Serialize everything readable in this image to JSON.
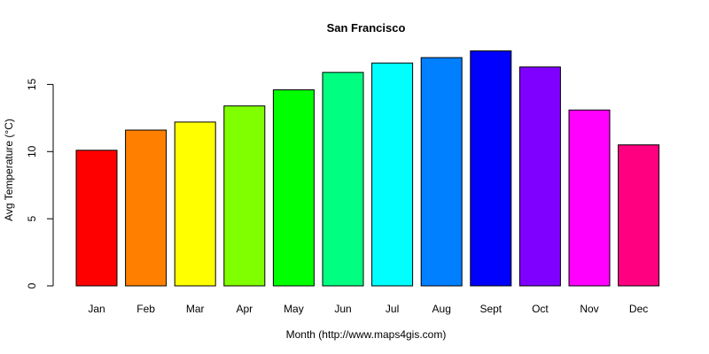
{
  "chart_data": {
    "type": "bar",
    "title": "San Francisco",
    "xlabel": "Month (http://www.maps4gis.com)",
    "ylabel": "Avg Temperature (°C)",
    "categories": [
      "Jan",
      "Feb",
      "Mar",
      "Apr",
      "May",
      "Jun",
      "Jul",
      "Aug",
      "Sept",
      "Oct",
      "Nov",
      "Dec"
    ],
    "values": [
      10.1,
      11.6,
      12.2,
      13.4,
      14.6,
      15.9,
      16.6,
      17.0,
      17.5,
      16.3,
      13.1,
      10.5
    ],
    "colors": [
      "#FF0000",
      "#FF8000",
      "#FFFF00",
      "#80FF00",
      "#00FF00",
      "#00FF80",
      "#00FFFF",
      "#0080FF",
      "#0000FF",
      "#8000FF",
      "#FF00FF",
      "#FF0080"
    ],
    "ylim": [
      0,
      17.5
    ],
    "yticks": [
      0,
      5,
      10,
      15
    ],
    "grid": false,
    "legend": "none"
  }
}
